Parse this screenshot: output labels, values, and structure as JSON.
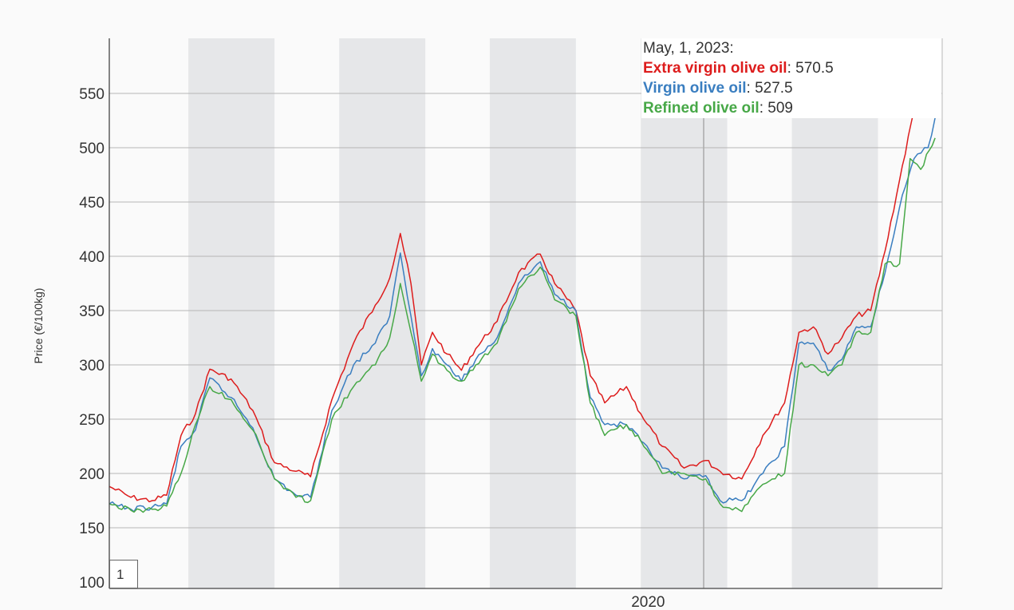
{
  "chart_data": {
    "type": "line",
    "title": "",
    "xlabel": "",
    "ylabel": "Price (€/100kg)",
    "ylim": [
      100,
      600
    ],
    "yticks": [
      100,
      150,
      200,
      250,
      300,
      350,
      400,
      450,
      500,
      550
    ],
    "xlim": [
      "2013-10-01",
      "2023-05-31"
    ],
    "xticks": [
      {
        "date": "2020-01-01",
        "label": "2020"
      }
    ],
    "shaded_bands": [
      [
        "2014-09-01",
        "2015-09-01"
      ],
      [
        "2016-06-01",
        "2017-06-01"
      ],
      [
        "2018-03-01",
        "2019-03-01"
      ],
      [
        "2019-12-01",
        "2020-12-01"
      ],
      [
        "2021-09-01",
        "2022-09-01"
      ]
    ],
    "series": [
      {
        "name": "Extra virgin olive oil",
        "color": "#dd1c1c",
        "points": [
          [
            "2013-10-01",
            188
          ],
          [
            "2014-01-01",
            178
          ],
          [
            "2014-04-01",
            175
          ],
          [
            "2014-06-01",
            180
          ],
          [
            "2014-08-01",
            235
          ],
          [
            "2014-10-01",
            255
          ],
          [
            "2014-12-01",
            296
          ],
          [
            "2015-03-01",
            287
          ],
          [
            "2015-06-01",
            258
          ],
          [
            "2015-09-01",
            210
          ],
          [
            "2015-12-01",
            202
          ],
          [
            "2016-02-01",
            197
          ],
          [
            "2016-05-01",
            268
          ],
          [
            "2016-08-01",
            320
          ],
          [
            "2016-11-01",
            355
          ],
          [
            "2017-01-01",
            380
          ],
          [
            "2017-02-15",
            421
          ],
          [
            "2017-04-01",
            375
          ],
          [
            "2017-05-15",
            300
          ],
          [
            "2017-07-01",
            330
          ],
          [
            "2017-09-01",
            310
          ],
          [
            "2017-11-01",
            295
          ],
          [
            "2018-01-01",
            315
          ],
          [
            "2018-04-01",
            340
          ],
          [
            "2018-07-01",
            385
          ],
          [
            "2018-10-01",
            402
          ],
          [
            "2018-12-01",
            375
          ],
          [
            "2019-03-01",
            350
          ],
          [
            "2019-05-01",
            290
          ],
          [
            "2019-07-01",
            265
          ],
          [
            "2019-10-01",
            280
          ],
          [
            "2019-12-01",
            255
          ],
          [
            "2020-03-01",
            225
          ],
          [
            "2020-06-01",
            205
          ],
          [
            "2020-09-01",
            212
          ],
          [
            "2020-11-01",
            202
          ],
          [
            "2021-02-01",
            195
          ],
          [
            "2021-05-01",
            235
          ],
          [
            "2021-08-01",
            265
          ],
          [
            "2021-10-01",
            330
          ],
          [
            "2021-12-01",
            335
          ],
          [
            "2022-02-01",
            310
          ],
          [
            "2022-04-01",
            325
          ],
          [
            "2022-06-01",
            345
          ],
          [
            "2022-08-01",
            350
          ],
          [
            "2022-10-01",
            405
          ],
          [
            "2022-12-01",
            470
          ],
          [
            "2023-02-01",
            535
          ],
          [
            "2023-04-01",
            530
          ],
          [
            "2023-05-01",
            570.5
          ]
        ]
      },
      {
        "name": "Virgin olive oil",
        "color": "#3a7ec0",
        "points": [
          [
            "2013-10-01",
            172
          ],
          [
            "2014-01-01",
            167
          ],
          [
            "2014-04-01",
            169
          ],
          [
            "2014-06-01",
            172
          ],
          [
            "2014-08-01",
            225
          ],
          [
            "2014-10-01",
            240
          ],
          [
            "2014-12-01",
            288
          ],
          [
            "2015-03-01",
            270
          ],
          [
            "2015-06-01",
            242
          ],
          [
            "2015-09-01",
            195
          ],
          [
            "2015-12-01",
            180
          ],
          [
            "2016-02-01",
            178
          ],
          [
            "2016-05-01",
            258
          ],
          [
            "2016-08-01",
            300
          ],
          [
            "2016-11-01",
            320
          ],
          [
            "2017-01-01",
            345
          ],
          [
            "2017-02-15",
            403
          ],
          [
            "2017-04-01",
            345
          ],
          [
            "2017-05-15",
            290
          ],
          [
            "2017-07-01",
            315
          ],
          [
            "2017-09-01",
            300
          ],
          [
            "2017-11-01",
            285
          ],
          [
            "2018-01-01",
            305
          ],
          [
            "2018-04-01",
            325
          ],
          [
            "2018-07-01",
            375
          ],
          [
            "2018-10-01",
            395
          ],
          [
            "2018-12-01",
            365
          ],
          [
            "2019-03-01",
            350
          ],
          [
            "2019-05-01",
            270
          ],
          [
            "2019-07-01",
            245
          ],
          [
            "2019-10-01",
            245
          ],
          [
            "2019-12-01",
            230
          ],
          [
            "2020-03-01",
            205
          ],
          [
            "2020-06-01",
            195
          ],
          [
            "2020-09-01",
            198
          ],
          [
            "2020-11-01",
            175
          ],
          [
            "2021-02-01",
            175
          ],
          [
            "2021-05-01",
            200
          ],
          [
            "2021-08-01",
            225
          ],
          [
            "2021-10-01",
            320
          ],
          [
            "2021-12-01",
            320
          ],
          [
            "2022-02-01",
            295
          ],
          [
            "2022-04-01",
            305
          ],
          [
            "2022-06-01",
            335
          ],
          [
            "2022-08-01",
            335
          ],
          [
            "2022-10-01",
            385
          ],
          [
            "2022-12-01",
            445
          ],
          [
            "2023-02-01",
            490
          ],
          [
            "2023-04-01",
            500
          ],
          [
            "2023-05-01",
            527.5
          ]
        ]
      },
      {
        "name": "Refined olive oil",
        "color": "#47a847",
        "points": [
          [
            "2013-10-01",
            172
          ],
          [
            "2014-01-01",
            166
          ],
          [
            "2014-04-01",
            167
          ],
          [
            "2014-06-01",
            170
          ],
          [
            "2014-08-01",
            200
          ],
          [
            "2014-10-01",
            245
          ],
          [
            "2014-12-01",
            280
          ],
          [
            "2015-03-01",
            268
          ],
          [
            "2015-06-01",
            240
          ],
          [
            "2015-09-01",
            195
          ],
          [
            "2015-12-01",
            178
          ],
          [
            "2016-02-01",
            175
          ],
          [
            "2016-05-01",
            250
          ],
          [
            "2016-08-01",
            280
          ],
          [
            "2016-11-01",
            300
          ],
          [
            "2017-01-01",
            325
          ],
          [
            "2017-02-15",
            375
          ],
          [
            "2017-04-01",
            330
          ],
          [
            "2017-05-15",
            285
          ],
          [
            "2017-07-01",
            310
          ],
          [
            "2017-09-01",
            295
          ],
          [
            "2017-11-01",
            285
          ],
          [
            "2018-01-01",
            300
          ],
          [
            "2018-04-01",
            320
          ],
          [
            "2018-07-01",
            370
          ],
          [
            "2018-10-01",
            390
          ],
          [
            "2018-12-01",
            360
          ],
          [
            "2019-03-01",
            345
          ],
          [
            "2019-05-01",
            265
          ],
          [
            "2019-07-01",
            235
          ],
          [
            "2019-10-01",
            245
          ],
          [
            "2019-12-01",
            230
          ],
          [
            "2020-03-01",
            200
          ],
          [
            "2020-06-01",
            200
          ],
          [
            "2020-09-01",
            195
          ],
          [
            "2020-11-01",
            172
          ],
          [
            "2021-02-01",
            165
          ],
          [
            "2021-05-01",
            190
          ],
          [
            "2021-08-01",
            200
          ],
          [
            "2021-10-01",
            300
          ],
          [
            "2021-12-01",
            300
          ],
          [
            "2022-02-01",
            290
          ],
          [
            "2022-04-01",
            300
          ],
          [
            "2022-06-01",
            330
          ],
          [
            "2022-08-01",
            330
          ],
          [
            "2022-10-01",
            393
          ],
          [
            "2022-12-01",
            393
          ],
          [
            "2023-01-15",
            490
          ],
          [
            "2023-03-01",
            480
          ],
          [
            "2023-05-01",
            509
          ]
        ]
      }
    ]
  },
  "tooltip": {
    "date": "May, 1, 2023:",
    "rows": [
      {
        "name": "Extra virgin olive oil",
        "value": "570.5",
        "color": "#dd1c1c"
      },
      {
        "name": "Virgin olive oil",
        "value": "527.5",
        "color": "#3a7ec0"
      },
      {
        "name": "Refined olive oil",
        "value": "509",
        "color": "#47a847"
      }
    ]
  },
  "zoom_box": {
    "label": "1"
  }
}
